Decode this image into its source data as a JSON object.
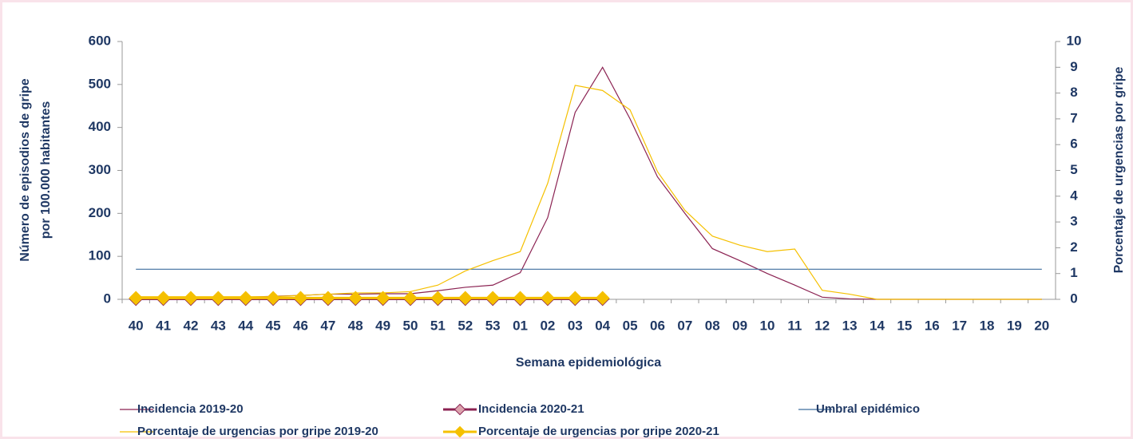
{
  "chart_data": {
    "type": "line",
    "xlabel": "Semana epidemiológica",
    "ylabel": [
      "Número de episodios de gripe",
      "por 100.000 habitantes"
    ],
    "y2label": "Porcentaje de urgencias por gripe",
    "categories": [
      "40",
      "41",
      "42",
      "43",
      "44",
      "45",
      "46",
      "47",
      "48",
      "49",
      "50",
      "51",
      "52",
      "53",
      "01",
      "02",
      "03",
      "04",
      "05",
      "06",
      "07",
      "08",
      "09",
      "10",
      "11",
      "12",
      "13",
      "14",
      "15",
      "16",
      "17",
      "18",
      "19",
      "20"
    ],
    "ylim": [
      0,
      600
    ],
    "yticks": [
      0,
      100,
      200,
      300,
      400,
      500,
      600
    ],
    "y2lim": [
      0,
      10
    ],
    "y2ticks": [
      0,
      1,
      2,
      3,
      4,
      5,
      6,
      7,
      8,
      9,
      10
    ],
    "series": [
      {
        "name": "Incidencia 2019-20",
        "color": "#8b2252",
        "linewidth": 1.2,
        "marker": "none",
        "values": [
          2,
          2,
          3,
          4,
          5,
          7,
          9,
          12,
          12,
          13,
          13,
          20,
          28,
          33,
          62,
          190,
          435,
          540,
          420,
          285,
          200,
          118,
          90,
          60,
          33,
          5,
          1,
          0,
          0,
          0,
          0,
          0,
          0,
          0
        ]
      },
      {
        "name": "Incidencia 2020-21",
        "color": "#8b2252",
        "linewidth": 3,
        "marker": "diamond",
        "marker_fill": "#dca3ad",
        "values": [
          1,
          1,
          1,
          1,
          1,
          1,
          1,
          1,
          1,
          1,
          1,
          1,
          1,
          1,
          1,
          1,
          1,
          1,
          null,
          null,
          null,
          null,
          null,
          null,
          null,
          null,
          null,
          null,
          null,
          null,
          null,
          null,
          null,
          null
        ]
      },
      {
        "name": "Umbral epidémico",
        "color": "#3e6e9e",
        "linewidth": 1.2,
        "marker": "none",
        "values": [
          70,
          70,
          70,
          70,
          70,
          70,
          70,
          70,
          70,
          70,
          70,
          70,
          70,
          70,
          70,
          70,
          70,
          70,
          70,
          70,
          70,
          70,
          70,
          70,
          70,
          70,
          70,
          70,
          70,
          70,
          70,
          70,
          70,
          70
        ]
      },
      {
        "name": "Porcentaje de urgencias por gripe 2019-20",
        "color": "#f5c000",
        "linewidth": 1.2,
        "marker": "none",
        "axis": "y2",
        "values": [
          0.1,
          0.1,
          0.1,
          0.1,
          0.1,
          0.1,
          0.15,
          0.2,
          0.25,
          0.25,
          0.3,
          0.55,
          1.1,
          1.5,
          1.85,
          4.5,
          8.3,
          8.1,
          7.35,
          4.95,
          3.45,
          2.45,
          2.1,
          1.85,
          1.95,
          0.35,
          0.2,
          0,
          0,
          0,
          0,
          0,
          0,
          0
        ]
      },
      {
        "name": "Porcentaje de urgencias por gripe 2020-21",
        "color": "#f5c000",
        "linewidth": 3,
        "marker": "diamond",
        "marker_fill": "#f5c000",
        "axis": "y2",
        "values": [
          0.05,
          0.05,
          0.05,
          0.05,
          0.05,
          0.05,
          0.05,
          0.05,
          0.05,
          0.05,
          0.05,
          0.05,
          0.05,
          0.05,
          0.05,
          0.05,
          0.05,
          0.05,
          null,
          null,
          null,
          null,
          null,
          null,
          null,
          null,
          null,
          null,
          null,
          null,
          null,
          null,
          null,
          null
        ]
      }
    ]
  }
}
